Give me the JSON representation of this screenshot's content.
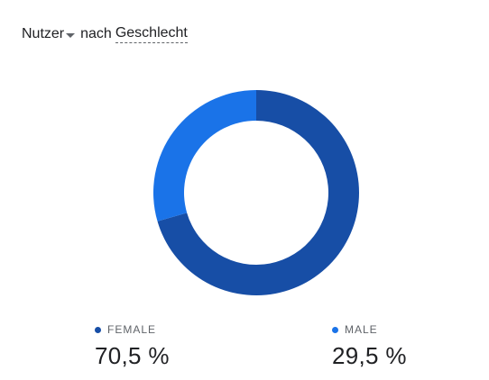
{
  "header": {
    "metric": "Nutzer",
    "connector": "nach",
    "dimension": "Geschlecht"
  },
  "chart_data": {
    "type": "pie",
    "donut": true,
    "title": "",
    "slices": [
      {
        "label": "FEMALE",
        "value": 70.5,
        "display": "70,5 %",
        "color": "#174ea6"
      },
      {
        "label": "MALE",
        "value": 29.5,
        "display": "29,5 %",
        "color": "#1a73e8"
      }
    ]
  }
}
